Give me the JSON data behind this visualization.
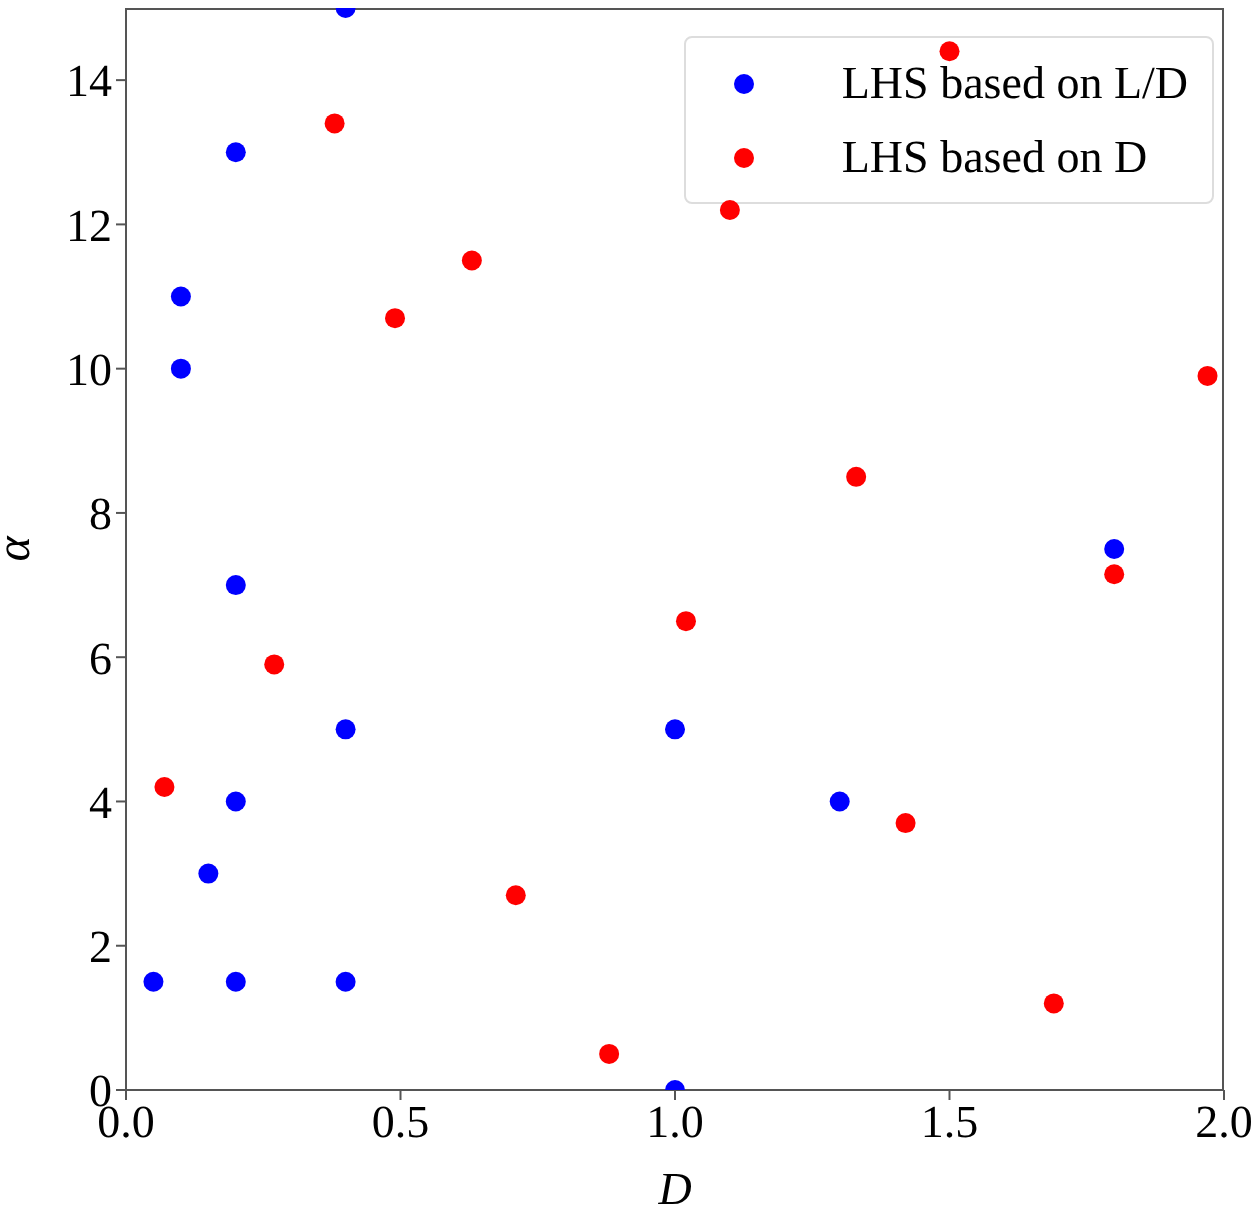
{
  "chart_data": {
    "type": "scatter",
    "xlabel": "D",
    "ylabel": "α",
    "xlim": [
      0,
      2.0
    ],
    "xticks": [
      {
        "value": 0,
        "label": "0.0"
      },
      0.5,
      {
        "value": 1,
        "label": "1.0"
      },
      1.5,
      {
        "value": 2,
        "label": "2.0"
      }
    ],
    "ylim": [
      0,
      15
    ],
    "yticks": [
      0,
      2,
      4,
      6,
      8,
      10,
      12,
      14
    ],
    "grid": false,
    "legend": "top right",
    "marker": "circle",
    "series": [
      {
        "name": "LHS based on L/D",
        "color": "#0000ff",
        "x": [
          0.05,
          0.1,
          0.1,
          0.15,
          0.2,
          0.2,
          0.2,
          0.2,
          0.4,
          0.4,
          0.4,
          1.0,
          1.0,
          1.3,
          1.8
        ],
        "values": [
          1.5,
          11,
          10,
          3,
          13,
          7,
          4,
          1.5,
          15,
          5,
          1.5,
          5,
          0,
          4,
          7.5
        ]
      },
      {
        "name": "LHS based on D",
        "color": "#ff0000",
        "x": [
          0.07,
          0.27,
          0.38,
          0.49,
          0.63,
          0.71,
          0.88,
          1.02,
          1.1,
          1.33,
          1.42,
          1.5,
          1.69,
          1.8,
          1.97
        ],
        "values": [
          4.2,
          5.9,
          13.4,
          10.7,
          11.5,
          2.7,
          0.5,
          6.5,
          12.2,
          8.5,
          3.7,
          14.4,
          1.2,
          7.15,
          9.9
        ]
      }
    ]
  }
}
